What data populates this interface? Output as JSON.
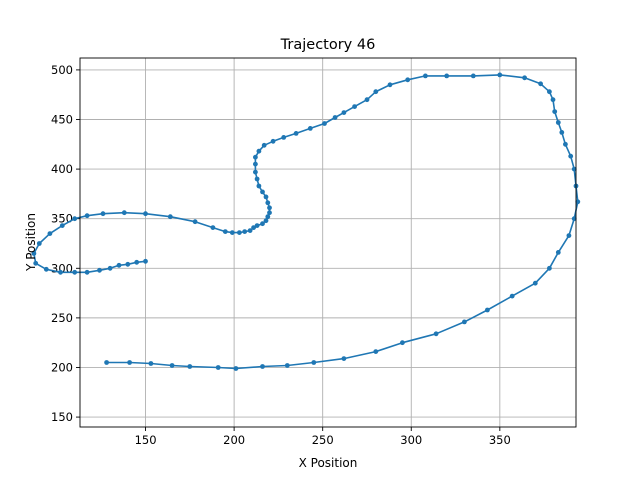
{
  "chart_data": {
    "type": "line",
    "title": "Trajectory 46",
    "xlabel": "X Position",
    "ylabel": "Y Position",
    "xlim": [
      113,
      393
    ],
    "ylim": [
      140,
      512
    ],
    "xticks": [
      150,
      200,
      250,
      300,
      350
    ],
    "yticks": [
      150,
      200,
      250,
      300,
      350,
      400,
      450,
      500
    ],
    "grid": true,
    "color": "#1f77b4",
    "series": [
      {
        "name": "",
        "points": [
          [
            128,
            205
          ],
          [
            141,
            205
          ],
          [
            153,
            204
          ],
          [
            165,
            202
          ],
          [
            175,
            201
          ],
          [
            191,
            200
          ],
          [
            201,
            199
          ],
          [
            216,
            201
          ],
          [
            230,
            202
          ],
          [
            245,
            205
          ],
          [
            262,
            209
          ],
          [
            280,
            216
          ],
          [
            295,
            225
          ],
          [
            314,
            234
          ],
          [
            330,
            246
          ],
          [
            343,
            258
          ],
          [
            357,
            272
          ],
          [
            370,
            285
          ],
          [
            378,
            300
          ],
          [
            383,
            316
          ],
          [
            389,
            333
          ],
          [
            392,
            350
          ],
          [
            394,
            367
          ],
          [
            393,
            383
          ],
          [
            392,
            400
          ],
          [
            390,
            413
          ],
          [
            387,
            425
          ],
          [
            385,
            437
          ],
          [
            383,
            447
          ],
          [
            381,
            458
          ],
          [
            380,
            470
          ],
          [
            378,
            478
          ],
          [
            373,
            486
          ],
          [
            364,
            492
          ],
          [
            350,
            495
          ],
          [
            335,
            494
          ],
          [
            320,
            494
          ],
          [
            308,
            494
          ],
          [
            298,
            490
          ],
          [
            288,
            485
          ],
          [
            280,
            478
          ],
          [
            275,
            470
          ],
          [
            268,
            463
          ],
          [
            262,
            457
          ],
          [
            257,
            452
          ],
          [
            251,
            446
          ],
          [
            243,
            441
          ],
          [
            235,
            436
          ],
          [
            228,
            432
          ],
          [
            222,
            428
          ],
          [
            217,
            424
          ],
          [
            214,
            418
          ],
          [
            212,
            412
          ],
          [
            212,
            405
          ],
          [
            212,
            397
          ],
          [
            213,
            390
          ],
          [
            214,
            383
          ],
          [
            216,
            377
          ],
          [
            218,
            372
          ],
          [
            219,
            366
          ],
          [
            220,
            361
          ],
          [
            220,
            356
          ],
          [
            219,
            352
          ],
          [
            218,
            348
          ],
          [
            216,
            345
          ],
          [
            213,
            343
          ],
          [
            211,
            341
          ],
          [
            209,
            338
          ],
          [
            206,
            337
          ],
          [
            203,
            336
          ],
          [
            199,
            336
          ],
          [
            195,
            337
          ],
          [
            188,
            341
          ],
          [
            178,
            347
          ],
          [
            164,
            352
          ],
          [
            150,
            355
          ],
          [
            138,
            356
          ],
          [
            126,
            355
          ],
          [
            117,
            353
          ],
          [
            110,
            350
          ],
          [
            103,
            343
          ],
          [
            96,
            335
          ],
          [
            90,
            325
          ],
          [
            87,
            315
          ],
          [
            88,
            305
          ],
          [
            94,
            299
          ],
          [
            102,
            296
          ],
          [
            110,
            296
          ],
          [
            117,
            296
          ],
          [
            124,
            298
          ],
          [
            130,
            300
          ],
          [
            135,
            303
          ],
          [
            140,
            304
          ],
          [
            145,
            306
          ],
          [
            150,
            307
          ]
        ]
      }
    ]
  }
}
